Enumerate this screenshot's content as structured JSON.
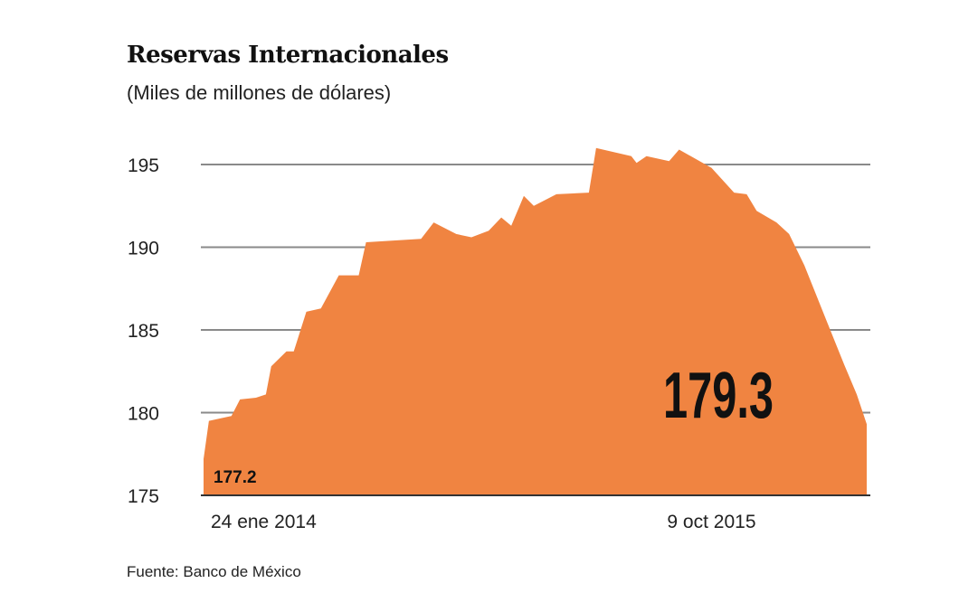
{
  "chart_data": {
    "type": "area",
    "title": "Reservas Internacionales",
    "subtitle": "(Miles de millones de dólares)",
    "source": "Fuente: Banco de México",
    "ylim": [
      175,
      196.5
    ],
    "yticks": [
      175,
      180,
      185,
      190,
      195
    ],
    "xlim": [
      0,
      100
    ],
    "xticks": [
      {
        "x": 0,
        "label": "24 ene 2014"
      },
      {
        "x": 76.6,
        "label": "9 oct 2015"
      }
    ],
    "grid": true,
    "color": "#F08441",
    "series": [
      {
        "name": "Reservas",
        "x": [
          0,
          0.8,
          4.2,
          5.5,
          7.9,
          9.4,
          10.2,
          12.5,
          13.6,
          15.5,
          17.7,
          20.4,
          23.4,
          24.5,
          32.8,
          34.7,
          38.1,
          40.4,
          43.0,
          44.9,
          46.4,
          48.3,
          49.8,
          53.2,
          58.1,
          59.2,
          64.5,
          65.3,
          66.8,
          70.2,
          71.7,
          76.6,
          80.0,
          81.9,
          83.4,
          86.4,
          88.3,
          90.6,
          94.0,
          96.6,
          98.5,
          100
        ],
        "y": [
          177.2,
          179.5,
          179.8,
          180.8,
          180.9,
          181.1,
          182.8,
          183.7,
          183.7,
          186.1,
          186.3,
          188.3,
          188.3,
          190.3,
          190.5,
          191.5,
          190.8,
          190.6,
          191.0,
          191.8,
          191.3,
          193.1,
          192.5,
          193.2,
          193.3,
          196.0,
          195.5,
          195.1,
          195.5,
          195.2,
          195.9,
          194.8,
          193.3,
          193.2,
          192.2,
          191.5,
          190.8,
          188.9,
          185.5,
          182.9,
          181.1,
          179.3
        ]
      }
    ],
    "annotations": [
      {
        "label": "177.2",
        "role": "start"
      },
      {
        "label": "179.3",
        "role": "end"
      }
    ]
  }
}
